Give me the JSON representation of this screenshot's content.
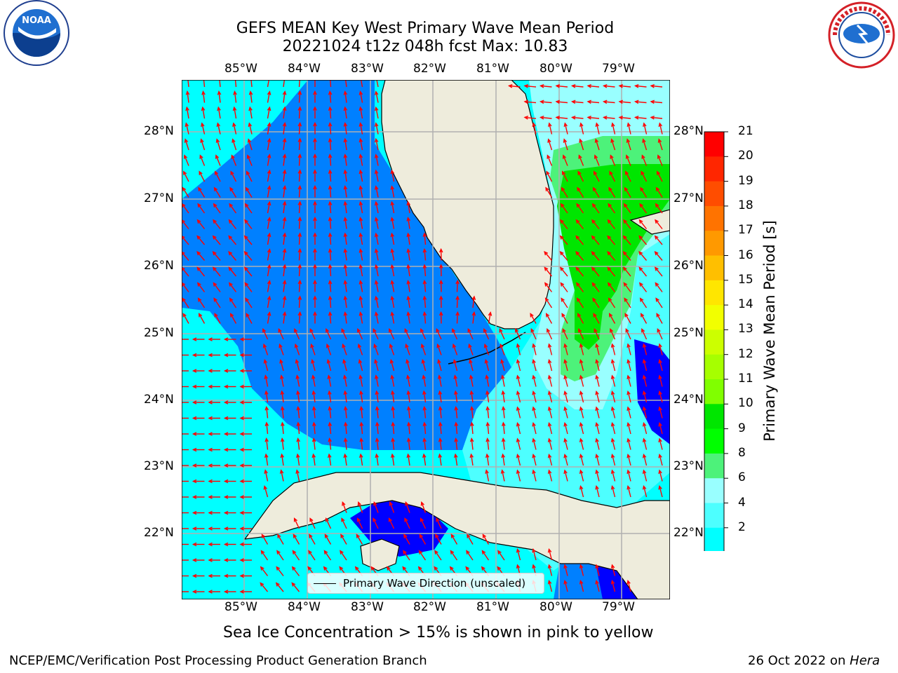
{
  "header": {
    "title_line1": "GEFS MEAN Key West Primary Wave Mean Period",
    "title_line2": "20221024 t12z 048h fcst   Max: 10.83"
  },
  "logos": {
    "left": "NOAA",
    "right": "NATIONAL WEATHER SERVICE"
  },
  "map": {
    "lon_ticks": [
      "85°W",
      "84°W",
      "83°W",
      "82°W",
      "81°W",
      "80°W",
      "79°W"
    ],
    "lat_ticks": [
      "28°N",
      "27°N",
      "26°N",
      "25°N",
      "24°N",
      "23°N",
      "22°N"
    ],
    "arrow_color": "#ff0000",
    "land_color": "#eeecdc",
    "legend_label": "Primary Wave Direction (unscaled)"
  },
  "colorbar": {
    "label": "Primary Wave Mean Period [s]",
    "ticks": [
      "21",
      "20",
      "19",
      "18",
      "17",
      "16",
      "15",
      "14",
      "13",
      "12",
      "11",
      "10",
      "9",
      "8",
      "6",
      "4",
      "2"
    ],
    "colors": [
      "#ff0000",
      "#ff2600",
      "#ff4d00",
      "#ff7300",
      "#ff9900",
      "#ffbf00",
      "#ffe600",
      "#f2ff00",
      "#ccff00",
      "#a6ff00",
      "#80ff00",
      "#00e600",
      "#00ff00",
      "#4df27a",
      "#99ffff",
      "#4dffff",
      "#00ffff",
      "#0080ff",
      "#0000ff"
    ]
  },
  "note": "Sea Ice Concentration > 15% is shown in pink to yellow",
  "footer": {
    "left": "NCEP/EMC/Verification Post Processing Product Generation Branch",
    "right_date": "26 Oct 2022 on ",
    "right_host": "Hera"
  }
}
